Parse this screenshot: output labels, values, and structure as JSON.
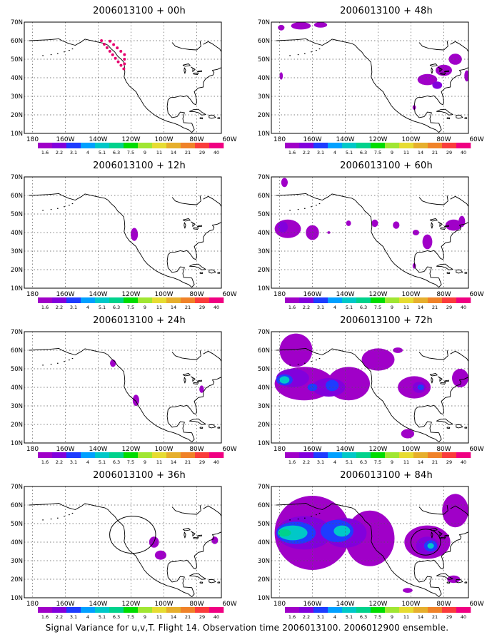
{
  "title_pattern": "2006013100 + {h}",
  "caption": "Signal Variance for u,v,T. Flight 14. Observation time 2006013100. 2006012900 ensemble.",
  "panels": [
    {
      "id": "p00",
      "title": "2006013100 + 00h"
    },
    {
      "id": "p12",
      "title": "2006013100 + 12h"
    },
    {
      "id": "p24",
      "title": "2006013100 + 24h"
    },
    {
      "id": "p36",
      "title": "2006013100 + 36h"
    },
    {
      "id": "p48",
      "title": "2006013100 + 48h"
    },
    {
      "id": "p60",
      "title": "2006013100 + 60h"
    },
    {
      "id": "p72",
      "title": "2006013100 + 72h"
    },
    {
      "id": "p84",
      "title": "2006013100 + 84h"
    }
  ],
  "lat_labels": [
    "70N",
    "60N",
    "50N",
    "40N",
    "30N",
    "20N",
    "10N"
  ],
  "lon_labels": [
    "180",
    "160W",
    "140W",
    "120W",
    "100W",
    "80W",
    "60W"
  ],
  "colorbar": {
    "labels": [
      "1.6",
      "2.2",
      "3.1",
      "4",
      "5.1",
      "6.3",
      "7.5",
      "9",
      "11",
      "14",
      "21",
      "29",
      "40"
    ],
    "colors": [
      "#a000c8",
      "#8200dc",
      "#1e3cff",
      "#00a0ff",
      "#00c8c8",
      "#00d28c",
      "#00dc00",
      "#a0e632",
      "#e6dc32",
      "#e6af2d",
      "#f08228",
      "#fa3c3c",
      "#f00082"
    ]
  },
  "colors": {
    "low": "#a000c8",
    "mid": "#8200dc",
    "blue": "#1e3cff",
    "cyan": "#00c8c8",
    "green": "#00d28c",
    "track": "#e6006e"
  }
}
